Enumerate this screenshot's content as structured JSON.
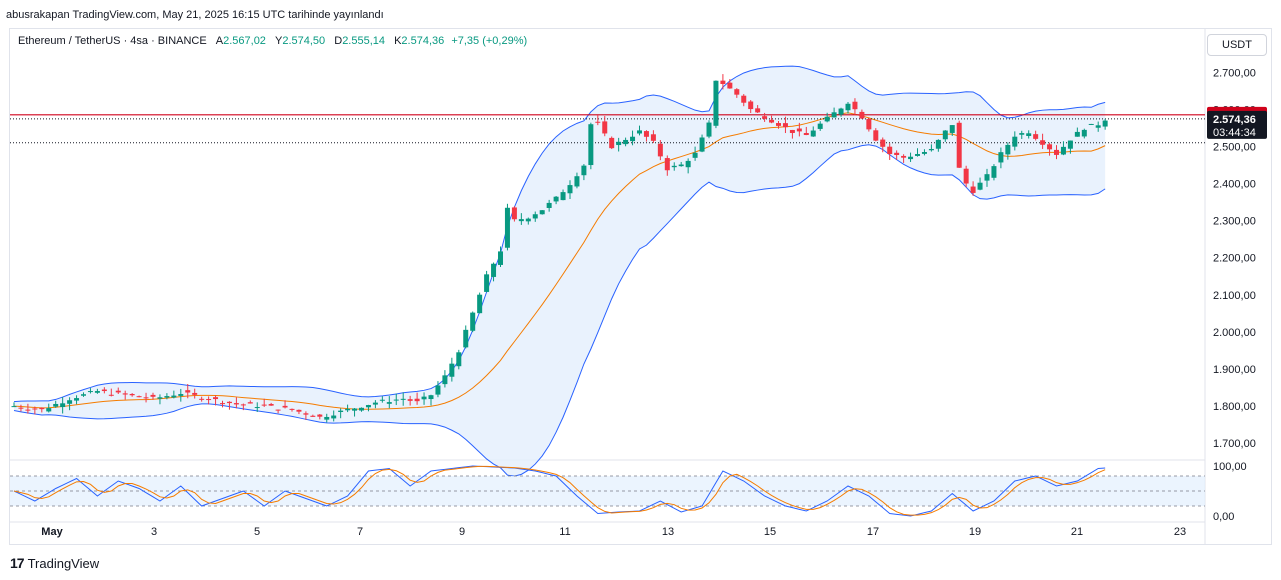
{
  "header": {
    "publisher": "abusrakapan TradingView.com, May 21, 2025 16:15 UTC tarihinde yayınlandı"
  },
  "legend": {
    "symbol": "Ethereum / TetherUS · 4sa · BINANCE",
    "open_label": "A",
    "open": "2.567,02",
    "high_label": "Y",
    "high": "2.574,50",
    "low_label": "D",
    "low": "2.555,14",
    "close_label": "K",
    "close": "2.574,36",
    "change": "+7,35 (+0,29%)"
  },
  "currency_button": "USDT",
  "footer": {
    "brand": "TradingView"
  },
  "colors": {
    "up": "#089981",
    "down": "#f23645",
    "band": "#2962ff",
    "band_fill": "#e3effd",
    "ma": "#f57c00",
    "stoch_k": "#2962ff",
    "stoch_d": "#f57c00",
    "resistance": "#d0021b"
  },
  "chart_data": {
    "type": "candlestick",
    "price_axis": {
      "ticks": [
        "2.700,00",
        "2.600,00",
        "2.500,00",
        "2.400,00",
        "2.300,00",
        "2.200,00",
        "2.100,00",
        "2.000,00",
        "1.900,00",
        "1.800,00",
        "1.700,00"
      ],
      "tick_values": [
        2700,
        2600,
        2500,
        2400,
        2300,
        2200,
        2100,
        2000,
        1900,
        1800,
        1700
      ],
      "range": [
        1660,
        2760
      ]
    },
    "time_axis": {
      "labels": [
        "May",
        "3",
        "5",
        "7",
        "9",
        "11",
        "13",
        "15",
        "17",
        "19",
        "21",
        "23"
      ]
    },
    "price_labels": {
      "resistance": {
        "value": 2585.26,
        "text": "2.585,26"
      },
      "last": {
        "value": 2574.36,
        "text": "2.574,36",
        "countdown": "03:44:34"
      }
    },
    "dotted_level": 2510,
    "oscillator": {
      "ticks": [
        "100,00",
        "0,00"
      ],
      "upper_band": 80,
      "lower_band": 20
    },
    "candles_anchor": [
      [
        0,
        1800
      ],
      [
        4,
        1790
      ],
      [
        8,
        1820
      ],
      [
        12,
        1840
      ],
      [
        16,
        1830
      ],
      [
        20,
        1820
      ],
      [
        24,
        1835
      ],
      [
        28,
        1820
      ],
      [
        32,
        1805
      ],
      [
        36,
        1800
      ],
      [
        40,
        1790
      ],
      [
        44,
        1770
      ],
      [
        48,
        1790
      ],
      [
        52,
        1810
      ],
      [
        56,
        1820
      ],
      [
        58,
        1810
      ],
      [
        60,
        1830
      ],
      [
        62,
        1880
      ],
      [
        64,
        1950
      ],
      [
        66,
        2050
      ],
      [
        68,
        2150
      ],
      [
        70,
        2220
      ],
      [
        71,
        2330
      ],
      [
        72,
        2300
      ],
      [
        74,
        2310
      ],
      [
        76,
        2330
      ],
      [
        78,
        2360
      ],
      [
        80,
        2400
      ],
      [
        82,
        2450
      ],
      [
        83,
        2560
      ],
      [
        84,
        2560
      ],
      [
        86,
        2500
      ],
      [
        88,
        2520
      ],
      [
        90,
        2540
      ],
      [
        92,
        2510
      ],
      [
        94,
        2440
      ],
      [
        96,
        2450
      ],
      [
        98,
        2480
      ],
      [
        100,
        2560
      ],
      [
        101,
        2680
      ],
      [
        102,
        2670
      ],
      [
        104,
        2640
      ],
      [
        106,
        2600
      ],
      [
        108,
        2580
      ],
      [
        110,
        2560
      ],
      [
        112,
        2540
      ],
      [
        114,
        2530
      ],
      [
        116,
        2560
      ],
      [
        118,
        2590
      ],
      [
        120,
        2620
      ],
      [
        122,
        2580
      ],
      [
        124,
        2520
      ],
      [
        126,
        2480
      ],
      [
        128,
        2470
      ],
      [
        130,
        2480
      ],
      [
        132,
        2490
      ],
      [
        134,
        2540
      ],
      [
        135,
        2560
      ],
      [
        136,
        2440
      ],
      [
        137,
        2400
      ],
      [
        138,
        2380
      ],
      [
        140,
        2420
      ],
      [
        142,
        2480
      ],
      [
        144,
        2530
      ],
      [
        146,
        2540
      ],
      [
        148,
        2510
      ],
      [
        150,
        2480
      ],
      [
        152,
        2520
      ],
      [
        154,
        2550
      ],
      [
        156,
        2560
      ],
      [
        157,
        2574
      ]
    ],
    "stoch_anchor": [
      [
        0,
        50
      ],
      [
        3,
        30
      ],
      [
        6,
        55
      ],
      [
        9,
        75
      ],
      [
        12,
        40
      ],
      [
        15,
        70
      ],
      [
        18,
        55
      ],
      [
        21,
        30
      ],
      [
        24,
        60
      ],
      [
        27,
        20
      ],
      [
        30,
        35
      ],
      [
        33,
        50
      ],
      [
        36,
        20
      ],
      [
        39,
        50
      ],
      [
        42,
        35
      ],
      [
        45,
        20
      ],
      [
        48,
        40
      ],
      [
        51,
        90
      ],
      [
        54,
        95
      ],
      [
        57,
        60
      ],
      [
        60,
        90
      ],
      [
        63,
        95
      ],
      [
        66,
        100
      ],
      [
        69,
        98
      ],
      [
        72,
        96
      ],
      [
        75,
        90
      ],
      [
        78,
        80
      ],
      [
        81,
        40
      ],
      [
        84,
        5
      ],
      [
        87,
        8
      ],
      [
        90,
        10
      ],
      [
        93,
        30
      ],
      [
        96,
        8
      ],
      [
        99,
        20
      ],
      [
        102,
        90
      ],
      [
        105,
        70
      ],
      [
        108,
        40
      ],
      [
        111,
        20
      ],
      [
        114,
        10
      ],
      [
        117,
        30
      ],
      [
        120,
        60
      ],
      [
        123,
        40
      ],
      [
        126,
        5
      ],
      [
        129,
        0
      ],
      [
        132,
        10
      ],
      [
        135,
        45
      ],
      [
        138,
        10
      ],
      [
        141,
        30
      ],
      [
        144,
        70
      ],
      [
        147,
        80
      ],
      [
        150,
        60
      ],
      [
        153,
        70
      ],
      [
        156,
        95
      ],
      [
        157,
        96
      ]
    ]
  }
}
